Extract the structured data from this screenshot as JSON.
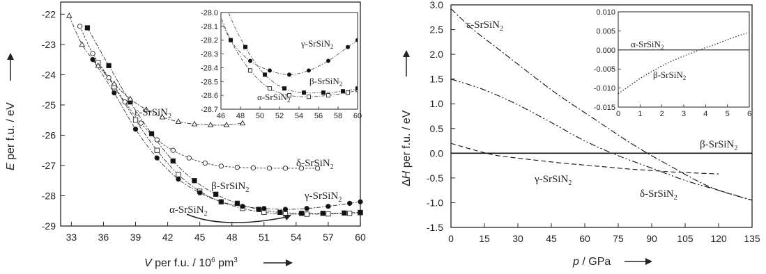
{
  "chart_data": [
    {
      "type": "scatter",
      "xlabel_html": {
        "var": "V",
        "rest": " per f.u. / 10",
        "sup": "6",
        "unit": " pm",
        "sup2": "3"
      },
      "ylabel_html": {
        "var": "E",
        "rest": " per f.u. / eV"
      },
      "xlim": [
        32,
        60
      ],
      "ylim": [
        -29,
        -21.6
      ],
      "xticks": [
        "33",
        "36",
        "39",
        "42",
        "45",
        "48",
        "51",
        "54",
        "57",
        "60"
      ],
      "yticks": [
        "-22",
        "-23",
        "-24",
        "-25",
        "-26",
        "-27",
        "-28",
        "-29"
      ],
      "series": [
        {
          "name": "α-SrSiN2",
          "label": {
            "pre": "α-SrSiN",
            "sub": "2"
          },
          "marker": "square-open",
          "x": [
            35.5,
            37,
            39,
            41,
            43,
            45,
            47,
            49,
            51,
            53,
            55,
            57,
            59,
            60
          ],
          "y": [
            -23.6,
            -24.4,
            -25.5,
            -26.5,
            -27.3,
            -27.85,
            -28.2,
            -28.42,
            -28.55,
            -28.6,
            -28.61,
            -28.6,
            -28.58,
            -28.56
          ]
        },
        {
          "name": "β-SrSiN2",
          "label": {
            "pre": "β-SrSiN",
            "sub": "2"
          },
          "marker": "square-filled",
          "x": [
            34.5,
            36.5,
            38.5,
            40.5,
            42.5,
            44.5,
            46.5,
            48.5,
            50.5,
            52.5,
            54.5,
            56.5,
            58.5,
            60
          ],
          "y": [
            -22.45,
            -23.7,
            -24.9,
            -25.95,
            -26.85,
            -27.5,
            -27.95,
            -28.25,
            -28.45,
            -28.55,
            -28.58,
            -28.58,
            -28.57,
            -28.55
          ]
        },
        {
          "name": "γ-SrSiN2",
          "label": {
            "pre": "γ-SrSiN",
            "sub": "2"
          },
          "marker": "circle-filled",
          "x": [
            35,
            37,
            39,
            41,
            43,
            45,
            47,
            49,
            51,
            53,
            55,
            57,
            59,
            60
          ],
          "y": [
            -23.5,
            -24.6,
            -25.8,
            -26.75,
            -27.45,
            -27.9,
            -28.2,
            -28.35,
            -28.42,
            -28.45,
            -28.42,
            -28.35,
            -28.25,
            -28.2
          ]
        },
        {
          "name": "δ-SrSiN2",
          "label": {
            "pre": "δ-SrSiN",
            "sub": "2"
          },
          "marker": "circle-open",
          "x": [
            33.8,
            35,
            36.5,
            38,
            39.5,
            41,
            42.5,
            44,
            45.5,
            47,
            48.5,
            50,
            51.5,
            53,
            54.5,
            56
          ],
          "y": [
            -22.4,
            -23.3,
            -24.1,
            -24.9,
            -25.6,
            -26.15,
            -26.5,
            -26.75,
            -26.92,
            -27.02,
            -27.06,
            -27.08,
            -27.09,
            -27.09,
            -27.09,
            -27.09
          ]
        },
        {
          "name": "ε-SrSiN2",
          "label": {
            "pre": "ε-SrSiN",
            "sub": "2"
          },
          "marker": "triangle-open",
          "x": [
            32.8,
            34,
            35.5,
            37,
            38.5,
            40,
            41.5,
            43,
            44.5,
            46,
            47.5,
            49
          ],
          "y": [
            -22.05,
            -23,
            -23.7,
            -24.3,
            -24.8,
            -25.15,
            -25.4,
            -25.55,
            -25.63,
            -25.66,
            -25.66,
            -25.6
          ]
        }
      ],
      "inset": {
        "xlim": [
          46,
          60
        ],
        "ylim": [
          -28.7,
          -28.0
        ],
        "xticks": [
          "46",
          "48",
          "50",
          "52",
          "54",
          "56",
          "58",
          "60"
        ],
        "yticks": [
          "-28.0",
          "-28.1",
          "-28.2",
          "-28.3",
          "-28.4",
          "-28.5",
          "-28.6",
          "-28.7"
        ],
        "labels": [
          {
            "pre": "γ-SrSiN",
            "sub": "2"
          },
          {
            "pre": "β-SrSiN",
            "sub": "2"
          },
          {
            "pre": "α-SrSiN",
            "sub": "2"
          }
        ]
      }
    },
    {
      "type": "line",
      "xlabel_html": {
        "var": "p",
        "rest": " / GPa"
      },
      "ylabel_html": {
        "pre": "Δ",
        "var": "H",
        "rest": " per f.u. / eV"
      },
      "xlim": [
        0,
        135
      ],
      "ylim": [
        -1.5,
        3.0
      ],
      "xticks": [
        "0",
        "15",
        "30",
        "45",
        "60",
        "75",
        "90",
        "105",
        "120",
        "135"
      ],
      "yticks": [
        "3.0",
        "2.5",
        "2.0",
        "1.5",
        "1.0",
        "0.5",
        "0.0",
        "-0.5",
        "-1.0",
        "-1.5"
      ],
      "series": [
        {
          "name": "β-SrSiN2",
          "label": {
            "pre": "β-SrSiN",
            "sub": "2"
          },
          "style": "solid",
          "x": [
            0,
            135
          ],
          "y": [
            0,
            0
          ]
        },
        {
          "name": "γ-SrSiN2",
          "label": {
            "pre": "γ-SrSiN",
            "sub": "2"
          },
          "style": "dashed",
          "x": [
            0,
            10,
            20,
            30,
            40,
            50,
            60,
            70,
            80,
            90,
            100,
            110,
            120
          ],
          "y": [
            0.2,
            0.07,
            -0.04,
            -0.1,
            -0.15,
            -0.2,
            -0.24,
            -0.28,
            -0.32,
            -0.35,
            -0.38,
            -0.4,
            -0.42
          ]
        },
        {
          "name": "δ-SrSiN2",
          "label": {
            "pre": "δ-SrSiN",
            "sub": "2"
          },
          "style": "dash-dot-dot",
          "x": [
            0,
            15,
            30,
            45,
            60,
            75,
            90,
            105,
            120,
            135
          ],
          "y": [
            1.5,
            1.28,
            0.98,
            0.62,
            0.25,
            -0.05,
            -0.3,
            -0.55,
            -0.75,
            -0.95
          ]
        },
        {
          "name": "ε-SrSiN2",
          "label": {
            "pre": "ε-SrSiN",
            "sub": "2"
          },
          "style": "dash-dot",
          "x": [
            0,
            10,
            20,
            30,
            40,
            50,
            60,
            70,
            80,
            90,
            100,
            110,
            120,
            135
          ],
          "y": [
            2.92,
            2.5,
            2.15,
            1.8,
            1.45,
            1.12,
            0.82,
            0.52,
            0.22,
            -0.05,
            -0.3,
            -0.55,
            -0.75,
            -0.95
          ]
        }
      ],
      "inset": {
        "xlim": [
          0,
          6
        ],
        "ylim": [
          -0.015,
          0.01
        ],
        "xticks": [
          "0",
          "1",
          "2",
          "3",
          "4",
          "5",
          "6"
        ],
        "yticks": [
          "0.010",
          "0.005",
          "0.000",
          "-0.005",
          "-0.010",
          "-0.015"
        ],
        "labels": [
          {
            "pre": "α-SrSiN",
            "sub": "2"
          },
          {
            "pre": "β-SrSiN",
            "sub": "2"
          }
        ],
        "series": [
          {
            "name": "α-SrSiN2",
            "style": "solid",
            "x": [
              0,
              6
            ],
            "y": [
              0,
              0
            ]
          },
          {
            "name": "β-SrSiN2",
            "style": "dotted",
            "x": [
              0,
              0.5,
              1,
              1.5,
              2,
              2.5,
              3,
              3.5,
              4,
              4.5,
              5,
              5.5,
              6
            ],
            "y": [
              -0.0115,
              -0.0095,
              -0.0075,
              -0.0058,
              -0.0042,
              -0.0028,
              -0.0016,
              -0.0005,
              0.0006,
              0.0016,
              0.0027,
              0.0037,
              0.0046
            ]
          }
        ]
      }
    }
  ]
}
